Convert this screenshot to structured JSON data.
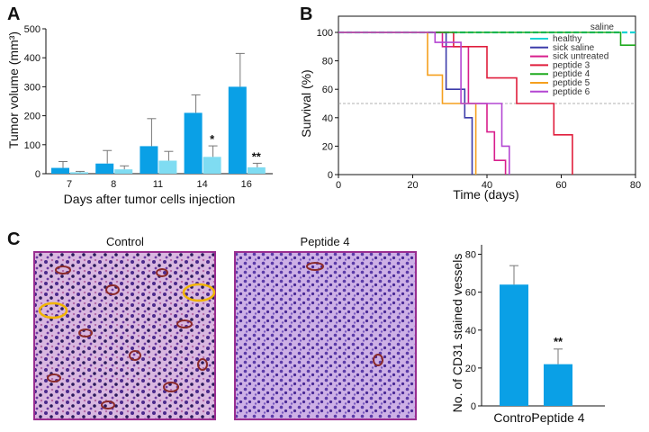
{
  "panel_labels": [
    "A",
    "B",
    "C"
  ],
  "colors": {
    "dark_bar": "#0aa0e6",
    "light_bar": "#7fdcf2",
    "error": "#777777",
    "healthy": "#1ad4d4",
    "sick_saline": "#3c3caa",
    "sick_untreated": "#d81e8c",
    "peptide_3": "#e01e3c",
    "peptide_4": "#1eaa1e",
    "peptide_5": "#f5a01e",
    "peptide_6": "#b446d2",
    "tissue_frame": "#9a2e90",
    "vessel_marker": "#f0b400"
  },
  "images": {
    "control_title": "Control",
    "peptide_title": "Peptide 4"
  },
  "chart_data": [
    {
      "panel": "A",
      "type": "bar",
      "categories": [
        "7",
        "8",
        "11",
        "14",
        "16"
      ],
      "series": [
        {
          "values": [
            20,
            35,
            95,
            210,
            300
          ],
          "errors": [
            22,
            45,
            95,
            62,
            115
          ],
          "color": "#0aa0e6"
        },
        {
          "values": [
            5,
            15,
            45,
            58,
            22
          ],
          "errors": [
            3,
            12,
            32,
            38,
            14
          ],
          "color": "#7fdcf2"
        }
      ],
      "significance": [
        "",
        "",
        "",
        "*",
        "**"
      ],
      "xlabel": "Days after tumor cells injection",
      "ylabel": "Tumor volume (mm³)",
      "ylim": [
        0,
        500
      ],
      "yticks": [
        0,
        100,
        200,
        300,
        400,
        500
      ]
    },
    {
      "panel": "B",
      "type": "line",
      "xlabel": "Time (days)",
      "ylabel": "Survival (%)",
      "xlim": [
        0,
        80
      ],
      "ylim": [
        0,
        100
      ],
      "xticks": [
        0,
        20,
        40,
        60,
        80
      ],
      "yticks": [
        0,
        20,
        40,
        60,
        80,
        100
      ],
      "annotation": "saline",
      "reference_line": 50,
      "legend_position": "top-right",
      "series": [
        {
          "name": "healthy",
          "color": "#1ad4d4",
          "dashed": true,
          "points": [
            [
              0,
              100
            ],
            [
              80,
              100
            ]
          ]
        },
        {
          "name": "sick saline",
          "color": "#3c3caa",
          "points": [
            [
              0,
              100
            ],
            [
              29,
              100
            ],
            [
              29,
              60
            ],
            [
              34,
              60
            ],
            [
              34,
              40
            ],
            [
              36,
              40
            ],
            [
              36,
              0
            ]
          ]
        },
        {
          "name": "sick untreated",
          "color": "#d81e8c",
          "points": [
            [
              0,
              100
            ],
            [
              28,
              100
            ],
            [
              28,
              90
            ],
            [
              35,
              90
            ],
            [
              35,
              50
            ],
            [
              40,
              50
            ],
            [
              40,
              30
            ],
            [
              42,
              30
            ],
            [
              42,
              10
            ],
            [
              45,
              10
            ],
            [
              45,
              0
            ]
          ]
        },
        {
          "name": "peptide 3",
          "color": "#e01e3c",
          "points": [
            [
              0,
              100
            ],
            [
              31,
              100
            ],
            [
              31,
              90
            ],
            [
              40,
              90
            ],
            [
              40,
              68
            ],
            [
              48,
              68
            ],
            [
              48,
              50
            ],
            [
              58,
              50
            ],
            [
              58,
              28
            ],
            [
              63,
              28
            ],
            [
              63,
              0
            ]
          ]
        },
        {
          "name": "peptide 4",
          "color": "#1eaa1e",
          "points": [
            [
              0,
              100
            ],
            [
              76,
              100
            ],
            [
              76,
              91
            ],
            [
              80,
              91
            ]
          ]
        },
        {
          "name": "peptide 5",
          "color": "#f5a01e",
          "points": [
            [
              0,
              100
            ],
            [
              24,
              100
            ],
            [
              24,
              70
            ],
            [
              28,
              70
            ],
            [
              28,
              50
            ],
            [
              37,
              50
            ],
            [
              37,
              0
            ]
          ]
        },
        {
          "name": "peptide 6",
          "color": "#b446d2",
          "points": [
            [
              0,
              100
            ],
            [
              26,
              100
            ],
            [
              26,
              93
            ],
            [
              33,
              93
            ],
            [
              33,
              50
            ],
            [
              44,
              50
            ],
            [
              44,
              20
            ],
            [
              46,
              20
            ],
            [
              46,
              0
            ]
          ]
        }
      ]
    },
    {
      "panel": "C",
      "type": "bar",
      "categories": [
        "Control",
        "Peptide 4"
      ],
      "values": [
        64,
        22
      ],
      "errors": [
        10,
        8
      ],
      "significance": [
        "",
        "**"
      ],
      "xlabel": "",
      "ylabel": "No. of CD31 stained vessels",
      "ylim": [
        0,
        85
      ],
      "yticks": [
        0,
        20,
        40,
        60,
        80
      ],
      "color": "#0aa0e6"
    }
  ]
}
